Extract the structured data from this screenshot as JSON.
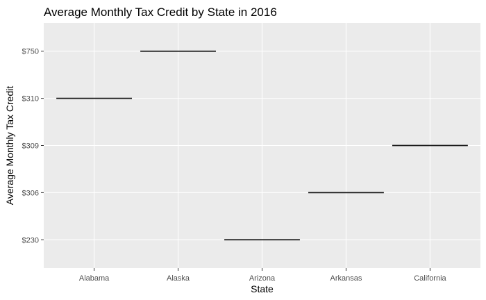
{
  "chart_data": {
    "type": "crossbar",
    "title": "Average Monthly Tax Credit by State in 2016",
    "xlabel": "State",
    "ylabel": "Average Monthly Tax Credit",
    "categories": [
      "Alabama",
      "Alaska",
      "Arizona",
      "Arkansas",
      "California"
    ],
    "y_levels": [
      "$230",
      "$306",
      "$309",
      "$310",
      "$750"
    ],
    "values": [
      "$310",
      "$750",
      "$230",
      "$306",
      "$309"
    ],
    "grid": true,
    "legend": "none",
    "colors": {
      "panel_background": "#ebebeb",
      "gridline": "#ffffff",
      "mark": "#1a1a1a",
      "tick_label": "#4d4d4d"
    }
  }
}
